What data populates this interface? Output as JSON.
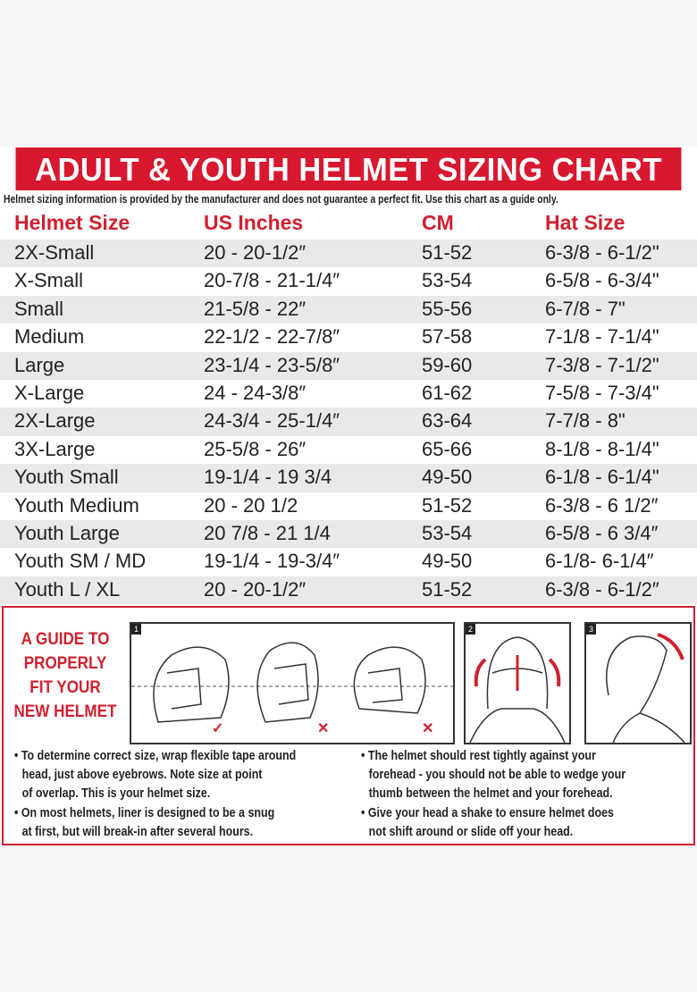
{
  "title": "ADULT & YOUTH HELMET SIZING CHART",
  "disclaimer": "Helmet sizing information is provided by the manufacturer and does not guarantee a perfect fit. Use this chart as a guide only.",
  "colors": {
    "accent": "#d8182f",
    "row_alt": "#e9e9e9"
  },
  "table": {
    "headers": [
      "Helmet Size",
      "US Inches",
      "CM",
      "Hat Size"
    ],
    "rows": [
      [
        "2X-Small",
        "20 - 20-1/2″",
        "51-52",
        "6-3/8 - 6-1/2\""
      ],
      [
        "X-Small",
        "20-7/8 - 21-1/4″",
        "53-54",
        "6-5/8 - 6-3/4\""
      ],
      [
        "Small",
        "21-5/8 - 22″",
        "55-56",
        "6-7/8 - 7\""
      ],
      [
        "Medium",
        "22-1/2 - 22-7/8″",
        "57-58",
        "7-1/8 - 7-1/4\""
      ],
      [
        "Large",
        "23-1/4 - 23-5/8″",
        "59-60",
        "7-3/8 - 7-1/2\""
      ],
      [
        "X-Large",
        "24 - 24-3/8″",
        "61-62",
        "7-5/8 - 7-3/4\""
      ],
      [
        "2X-Large",
        "24-3/4 - 25-1/4″",
        "63-64",
        "7-7/8 - 8\""
      ],
      [
        "3X-Large",
        "25-5/8 - 26″",
        "65-66",
        "8-1/8 - 8-1/4\""
      ],
      [
        "Youth Small",
        "19-1/4 - 19 3/4",
        "49-50",
        "6-1/8 - 6-1/4\""
      ],
      [
        "Youth Medium",
        "20 - 20 1/2",
        "51-52",
        "6-3/8 - 6 1/2″"
      ],
      [
        "Youth Large",
        "20 7/8 - 21 1/4",
        "53-54",
        "6-5/8 - 6 3/4″"
      ],
      [
        "Youth SM / MD",
        "19-1/4 - 19-3/4″",
        "49-50",
        "6-1/8- 6-1/4″"
      ],
      [
        "Youth L / XL",
        "20 - 20-1/2″",
        "51-52",
        "6-3/8 - 6-1/2″"
      ]
    ]
  },
  "guide": {
    "title_lines": [
      "A GUIDE TO",
      "PROPERLY",
      "FIT YOUR",
      "NEW HELMET"
    ],
    "panels": [
      "1",
      "2",
      "3"
    ],
    "marks": [
      "check-icon",
      "x-icon",
      "x-icon"
    ],
    "bullets_left": [
      [
        "• To determine correct size, wrap flexible tape around",
        "head, just above eyebrows. Note size at point",
        "of overlap. This is your helmet size."
      ],
      [
        "• On most helmets,  liner is designed to be a snug",
        "at first, but will break-in after several hours."
      ]
    ],
    "bullets_right": [
      [
        "• The helmet should rest tightly against your",
        "forehead - you should not be able to wedge your",
        "thumb between the helmet and your forehead."
      ],
      [
        "• Give your head a shake to ensure helmet does",
        "not shift around or slide off your head."
      ]
    ]
  }
}
